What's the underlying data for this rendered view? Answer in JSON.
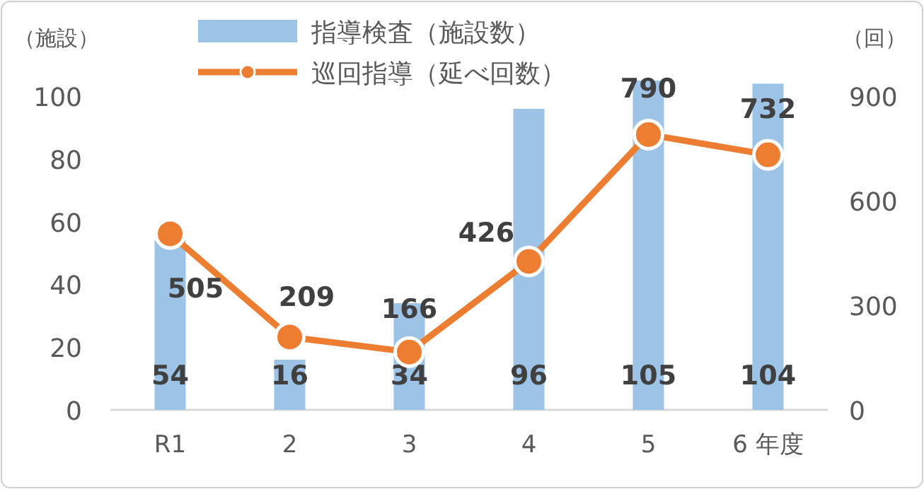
{
  "chart_data": {
    "type": "bar",
    "categories": [
      "R1",
      "2",
      "3",
      "4",
      "5",
      "6 年度"
    ],
    "ylabel": "（施設）",
    "y2label": "（回）",
    "series": [
      {
        "name": "指導検査（施設数）",
        "color": "#9dc3e6",
        "values": [
          54,
          16,
          34,
          96,
          105,
          104
        ]
      },
      {
        "name": "巡回指導（延べ回数）",
        "type": "line",
        "axis": "y2",
        "color": "#ed7d31",
        "marker": "circle",
        "values": [
          505,
          209,
          166,
          426,
          790,
          732
        ]
      }
    ],
    "ylim": [
      0,
      105
    ],
    "yticks": [
      0,
      20,
      40,
      60,
      80,
      100
    ],
    "y2lim": [
      0,
      945
    ],
    "y2ticks": [
      0,
      300,
      600,
      900
    ],
    "data_labels": true,
    "grid": false,
    "legend": "top"
  }
}
